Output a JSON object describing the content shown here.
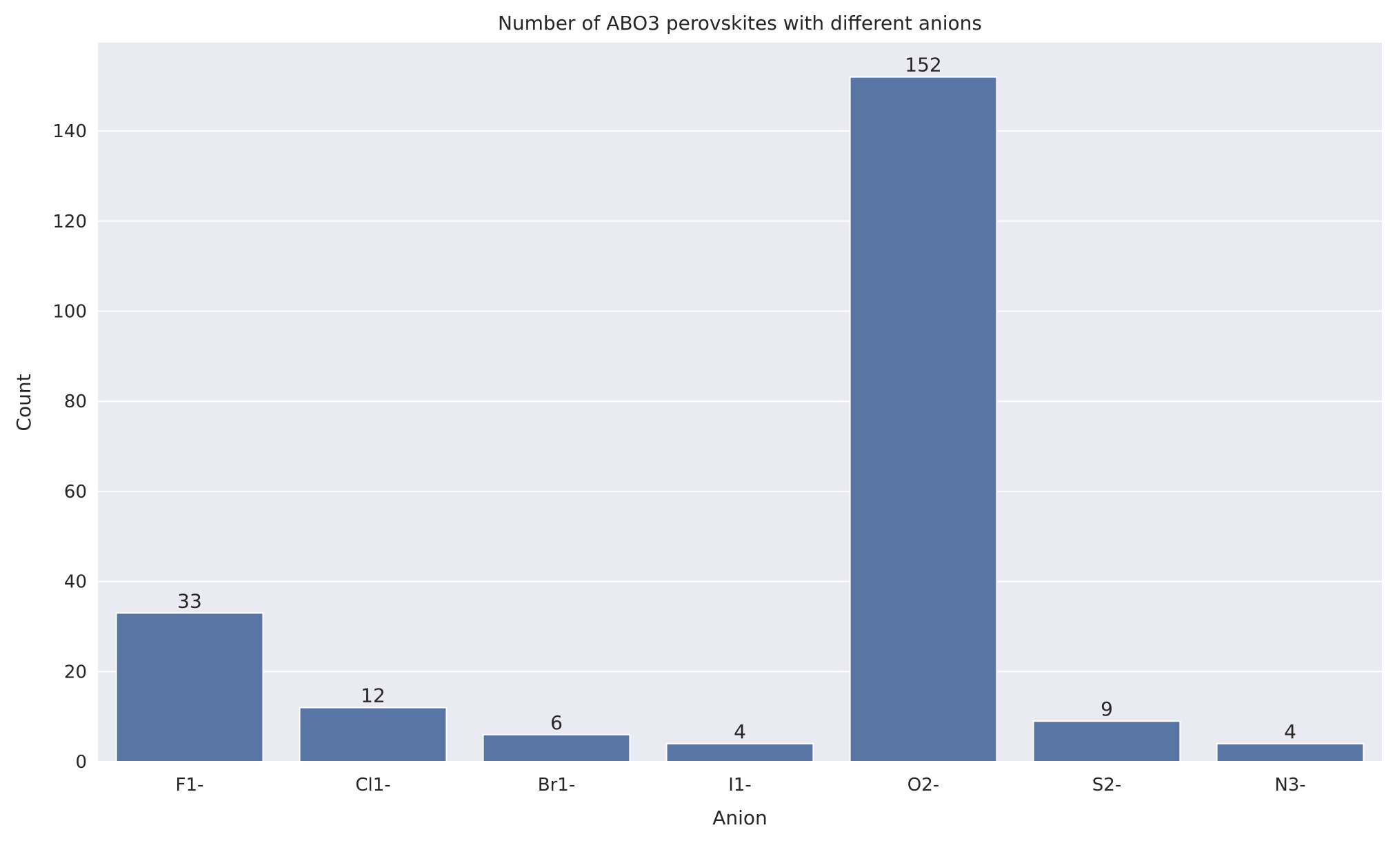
{
  "chart_data": {
    "type": "bar",
    "title": "Number of ABO3 perovskites with different anions",
    "xlabel": "Anion",
    "ylabel": "Count",
    "categories": [
      "F1-",
      "Cl1-",
      "Br1-",
      "I1-",
      "O2-",
      "S2-",
      "N3-"
    ],
    "values": [
      33,
      12,
      6,
      4,
      152,
      9,
      4
    ],
    "data_labels": [
      "33",
      "12",
      "6",
      "4",
      "152",
      "9",
      "4"
    ],
    "yticks": [
      0,
      20,
      40,
      60,
      80,
      100,
      120,
      140
    ],
    "ylim": [
      0,
      159.6
    ],
    "grid": true,
    "legend": "none",
    "colors": {
      "bar": "#5975a4",
      "plot_background": "#eaeaf2",
      "grid": "#ffffff",
      "text": "#262626"
    }
  }
}
